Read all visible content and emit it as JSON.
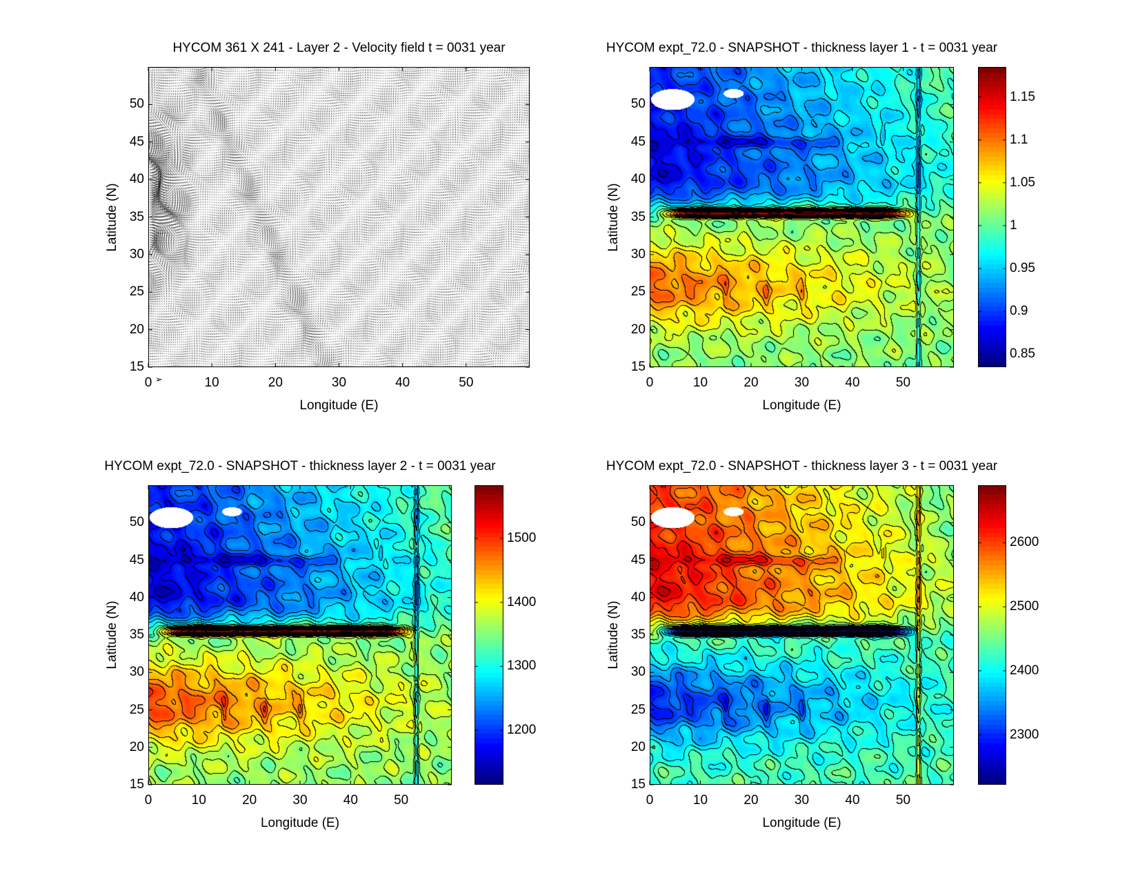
{
  "chart_data": [
    {
      "type": "vector",
      "title": "HYCOM 361 X 241 - Layer 2 - Velocity field  t = 0031 year",
      "xlabel": "Longitude (E)",
      "ylabel": "Latitude (N)",
      "xlim": [
        0,
        60
      ],
      "ylim": [
        15,
        55
      ],
      "xticks": [
        0,
        10,
        20,
        30,
        40,
        50
      ],
      "yticks": [
        15,
        20,
        25,
        30,
        35,
        40,
        45,
        50
      ],
      "reference_arrow": "➢"
    },
    {
      "type": "heatmap",
      "title": "HYCOM expt_72.0 - SNAPSHOT - thickness layer 1 - t = 0031 year",
      "xlabel": "Longitude (E)",
      "ylabel": "Latitude (N)",
      "xlim": [
        0,
        60
      ],
      "ylim": [
        15,
        55
      ],
      "xticks": [
        0,
        10,
        20,
        30,
        40,
        50
      ],
      "yticks": [
        15,
        20,
        25,
        30,
        35,
        40,
        45,
        50
      ],
      "colormap": "jet",
      "colorbar": {
        "range": [
          0.835,
          1.185
        ],
        "ticks": [
          "0.85",
          "0.9",
          "0.95",
          "1",
          "1.05",
          "1.1",
          "1.15"
        ]
      },
      "field": {
        "mean": 1.0,
        "amplitude": 0.12,
        "contour_interval": 0.02,
        "inverted": false
      }
    },
    {
      "type": "heatmap",
      "title": "HYCOM expt_72.0 - SNAPSHOT - thickness layer 2 - t = 0031 year",
      "xlabel": "Longitude (E)",
      "ylabel": "Latitude (N)",
      "xlim": [
        0,
        60
      ],
      "ylim": [
        15,
        55
      ],
      "xticks": [
        0,
        10,
        20,
        30,
        40,
        50
      ],
      "yticks": [
        15,
        20,
        25,
        30,
        35,
        40,
        45,
        50
      ],
      "colormap": "jet",
      "colorbar": {
        "range": [
          1115,
          1583
        ],
        "ticks": [
          "1200",
          "1300",
          "1400",
          "1500"
        ]
      },
      "field": {
        "mean": 1340,
        "amplitude": 170,
        "contour_interval": 25,
        "inverted": false
      }
    },
    {
      "type": "heatmap",
      "title": "HYCOM expt_72.0 - SNAPSHOT - thickness layer 3 - t = 0031 year",
      "xlabel": "Longitude (E)",
      "ylabel": "Latitude (N)",
      "xlim": [
        0,
        60
      ],
      "ylim": [
        15,
        55
      ],
      "xticks": [
        0,
        10,
        20,
        30,
        40,
        50
      ],
      "yticks": [
        15,
        20,
        25,
        30,
        35,
        40,
        45,
        50
      ],
      "colormap": "jet",
      "colorbar": {
        "range": [
          2222,
          2690
        ],
        "ticks": [
          "2300",
          "2400",
          "2500",
          "2600"
        ]
      },
      "field": {
        "mean": 2450,
        "amplitude": 175,
        "contour_interval": 25,
        "inverted": true
      }
    }
  ]
}
